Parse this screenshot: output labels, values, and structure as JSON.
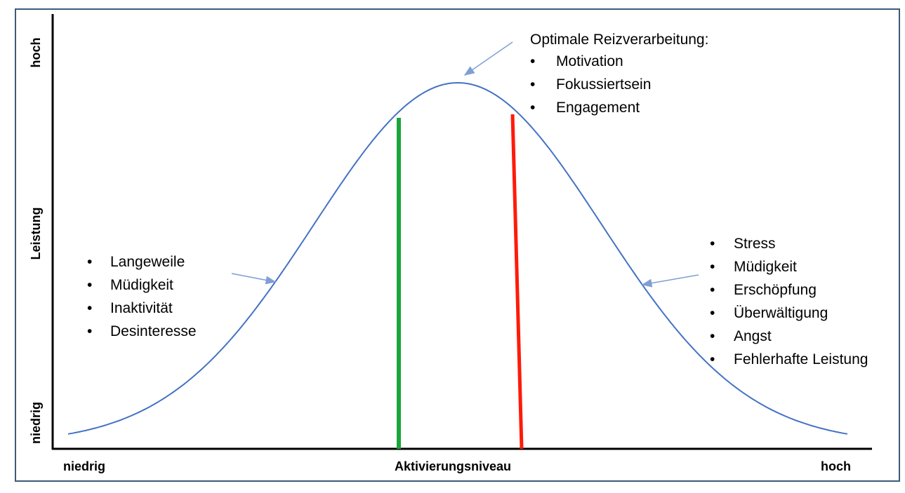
{
  "axes": {
    "y_title": "Leistung",
    "y_high": "hoch",
    "y_low": "niedrig",
    "x_title": "Aktivierungsniveau",
    "x_low": "niedrig",
    "x_high": "hoch"
  },
  "peak_note": {
    "title": "Optimale Reizverarbeitung:",
    "items": [
      "Motivation",
      "Fokussiertsein",
      "Engagement"
    ]
  },
  "low_note": {
    "items": [
      "Langeweile",
      "Müdigkeit",
      "Inaktivität",
      "Desinteresse"
    ]
  },
  "high_note": {
    "items": [
      "Stress",
      "Müdigkeit",
      "Erschöpfung",
      "Überwältigung",
      "Angst",
      "Fehlerhafte Leistung"
    ]
  },
  "bullet": "•",
  "colors": {
    "curve": "#4472c4",
    "optimal_lower_bound": "#1aa53a",
    "optimal_upper_bound": "#ff1a0a",
    "frame": "#3a5a7a",
    "arrow": "#7f9fd4"
  }
}
